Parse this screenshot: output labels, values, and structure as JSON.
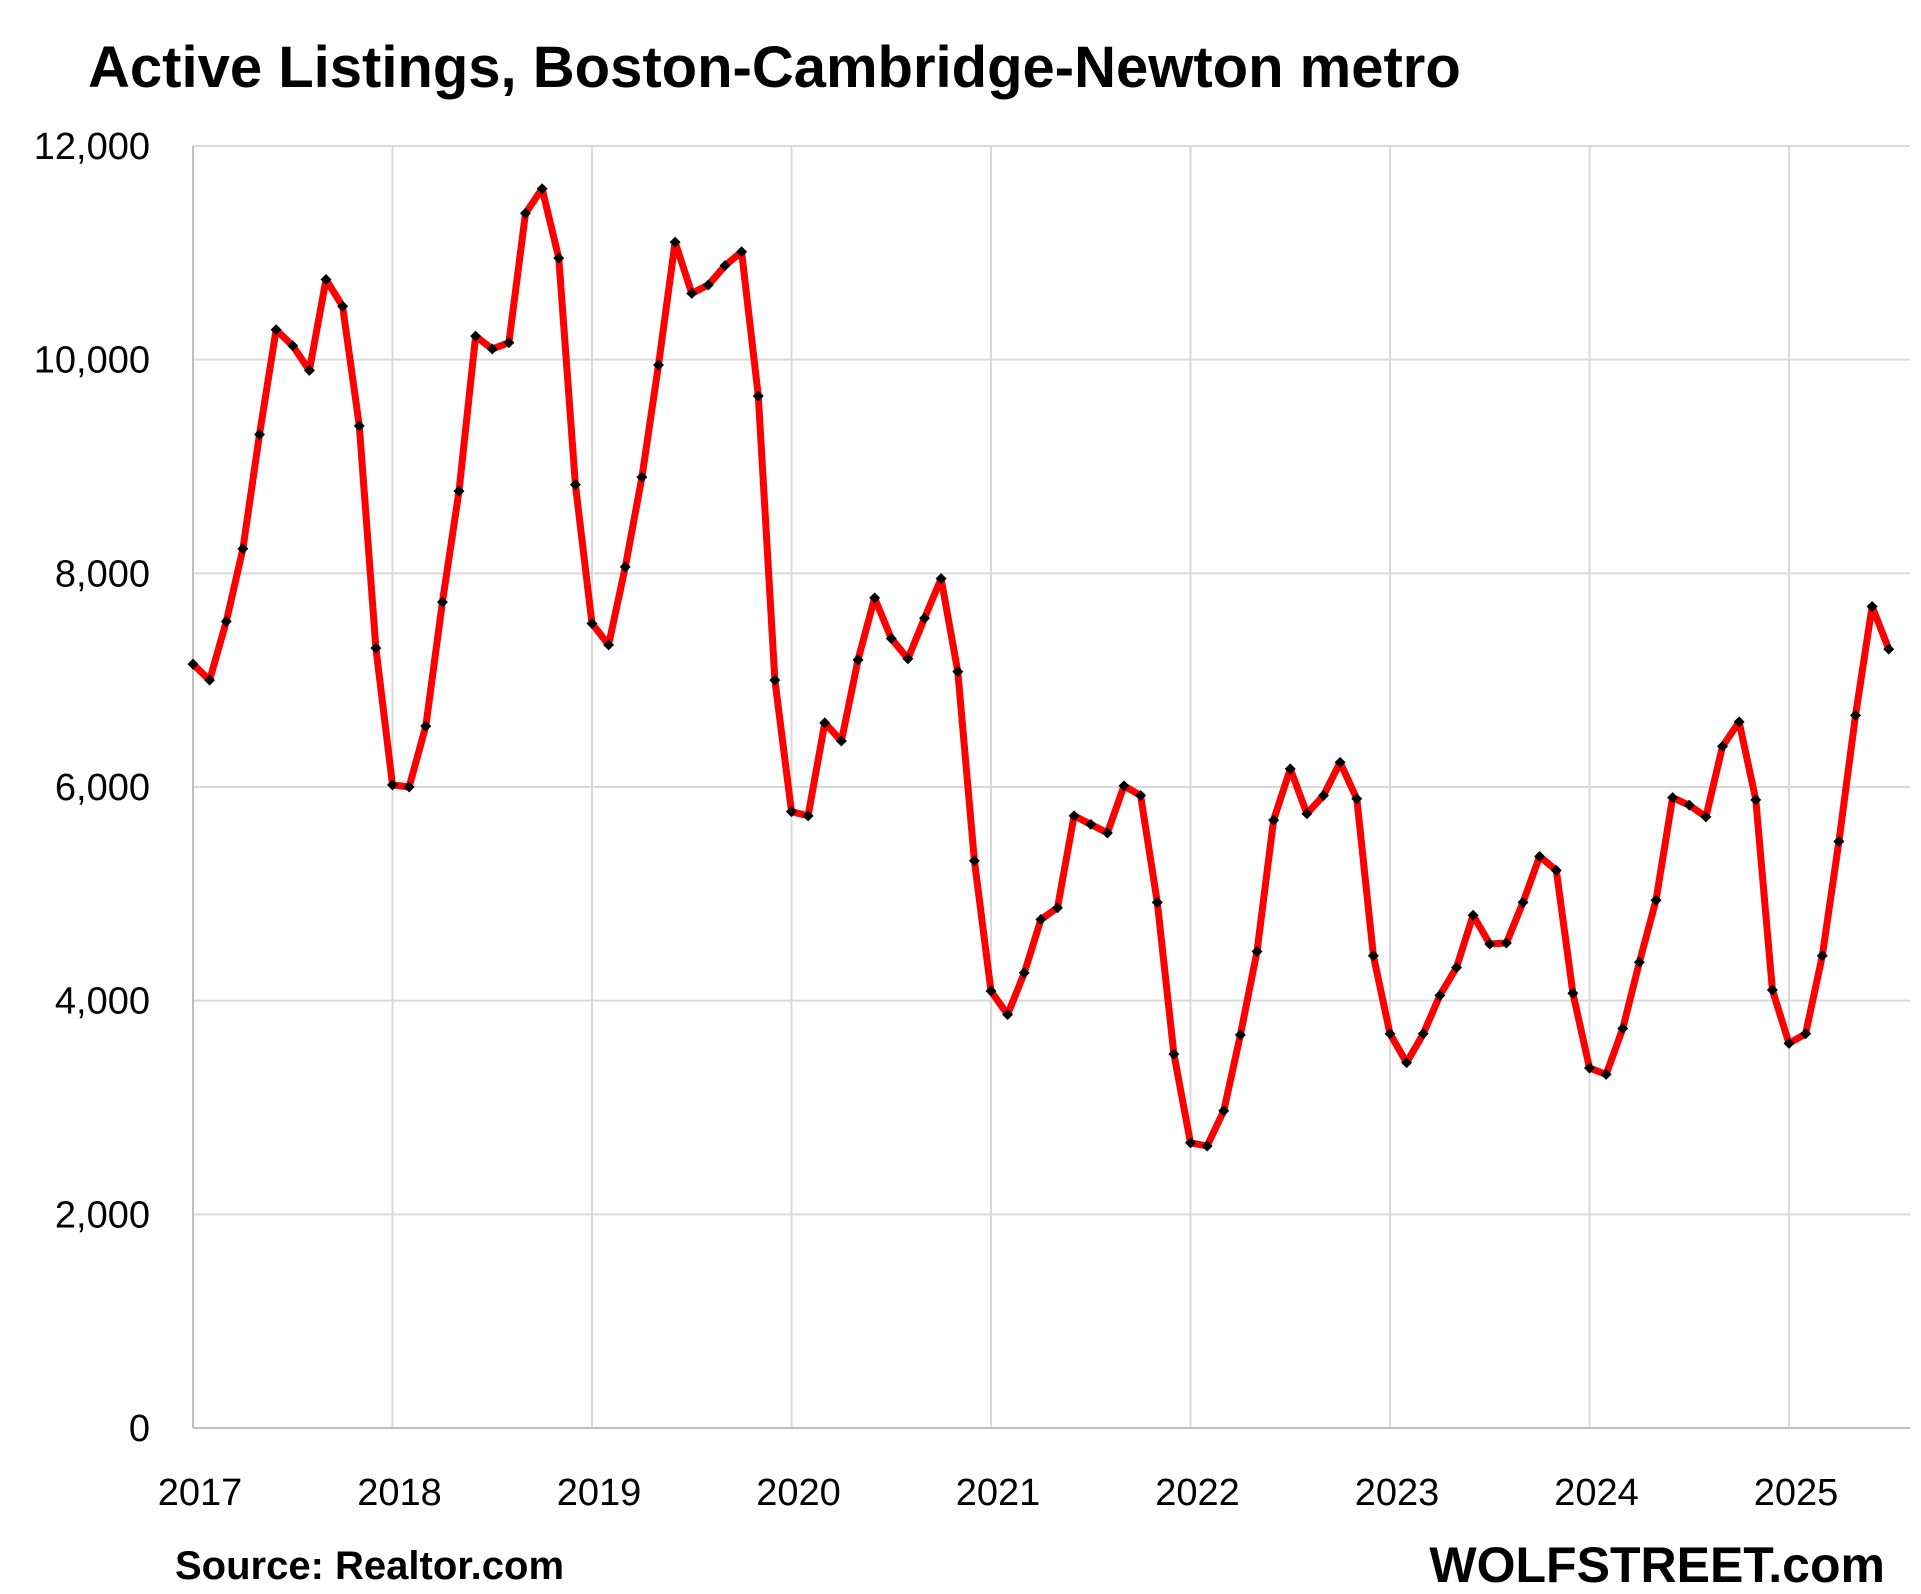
{
  "chart_data": {
    "type": "line",
    "title": "Active Listings, Boston-Cambridge-Newton metro",
    "xlabel": "",
    "ylabel": "",
    "ylim": [
      0,
      12000
    ],
    "y_ticks": [
      "0",
      "2,000",
      "4,000",
      "6,000",
      "8,000",
      "10,000",
      "12,000"
    ],
    "x_ticks": [
      "2017",
      "2018",
      "2019",
      "2020",
      "2021",
      "2022",
      "2023",
      "2024",
      "2025"
    ],
    "grid": true,
    "legend": "none",
    "x_start": "2017-01",
    "x": [
      "2017-01",
      "2017-02",
      "2017-03",
      "2017-04",
      "2017-05",
      "2017-06",
      "2017-07",
      "2017-08",
      "2017-09",
      "2017-10",
      "2017-11",
      "2017-12",
      "2018-01",
      "2018-02",
      "2018-03",
      "2018-04",
      "2018-05",
      "2018-06",
      "2018-07",
      "2018-08",
      "2018-09",
      "2018-10",
      "2018-11",
      "2018-12",
      "2019-01",
      "2019-02",
      "2019-03",
      "2019-04",
      "2019-05",
      "2019-06",
      "2019-07",
      "2019-08",
      "2019-09",
      "2019-10",
      "2019-11",
      "2019-12",
      "2020-01",
      "2020-02",
      "2020-03",
      "2020-04",
      "2020-05",
      "2020-06",
      "2020-07",
      "2020-08",
      "2020-09",
      "2020-10",
      "2020-11",
      "2020-12",
      "2021-01",
      "2021-02",
      "2021-03",
      "2021-04",
      "2021-05",
      "2021-06",
      "2021-07",
      "2021-08",
      "2021-09",
      "2021-10",
      "2021-11",
      "2021-12",
      "2022-01",
      "2022-02",
      "2022-03",
      "2022-04",
      "2022-05",
      "2022-06",
      "2022-07",
      "2022-08",
      "2022-09",
      "2022-10",
      "2022-11",
      "2022-12",
      "2023-01",
      "2023-02",
      "2023-03",
      "2023-04",
      "2023-05",
      "2023-06",
      "2023-07",
      "2023-08",
      "2023-09",
      "2023-10",
      "2023-11",
      "2023-12",
      "2024-01",
      "2024-02",
      "2024-03",
      "2024-04",
      "2024-05",
      "2024-06",
      "2024-07",
      "2024-08",
      "2024-09",
      "2024-10",
      "2024-11",
      "2024-12",
      "2025-01",
      "2025-02",
      "2025-03",
      "2025-04",
      "2025-05",
      "2025-06",
      "2025-07"
    ],
    "series": [
      {
        "name": "",
        "color": "#ff0000",
        "marker_color": "#000000",
        "values": [
          7150,
          7000,
          7550,
          8230,
          9300,
          10280,
          10130,
          9900,
          10750,
          10500,
          9380,
          7300,
          6020,
          6000,
          6570,
          7730,
          8770,
          10220,
          10100,
          10160,
          11370,
          11600,
          10950,
          8830,
          7530,
          7330,
          8060,
          8900,
          9950,
          11100,
          10620,
          10700,
          10880,
          11010,
          9660,
          7000,
          5770,
          5730,
          6600,
          6430,
          7190,
          7770,
          7390,
          7200,
          7580,
          7950,
          7080,
          5310,
          4090,
          3870,
          4260,
          4760,
          4870,
          5730,
          5650,
          5570,
          6010,
          5920,
          4920,
          3500,
          2670,
          2640,
          2970,
          3680,
          4460,
          5690,
          6170,
          5750,
          5920,
          6230,
          5890,
          4420,
          3690,
          3420,
          3690,
          4050,
          4310,
          4800,
          4530,
          4540,
          4920,
          5350,
          5220,
          4070,
          3370,
          3310,
          3740,
          4360,
          4940,
          5900,
          5830,
          5720,
          6380,
          6610,
          5880,
          4100,
          3600,
          3690,
          4420,
          5490,
          6670,
          7690,
          7290
        ]
      }
    ]
  },
  "footer": {
    "source": "Source: Realtor.com",
    "brand": "WOLFSTREET.com"
  }
}
